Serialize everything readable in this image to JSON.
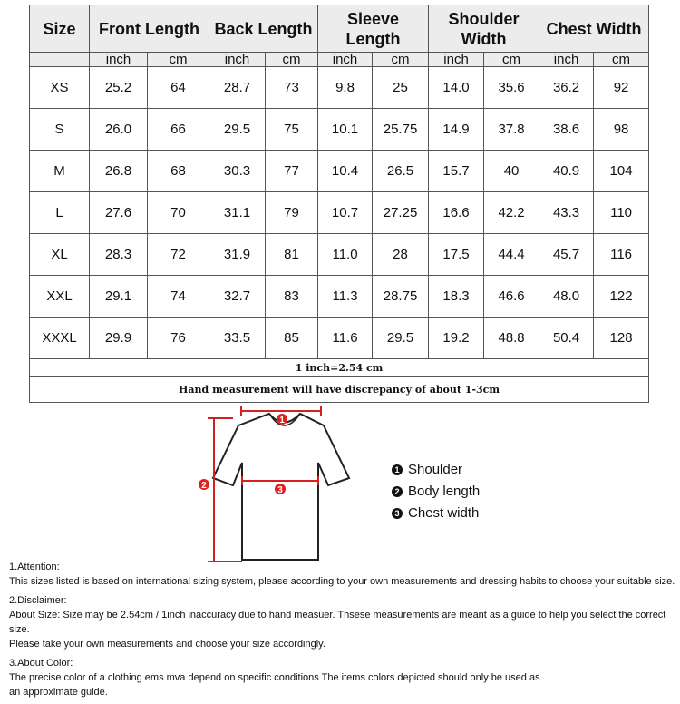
{
  "headers": [
    "Size",
    "Front Length",
    "Back Length",
    "Sleeve Length",
    "Shoulder Width",
    "Chest Width"
  ],
  "units": [
    "inch",
    "cm"
  ],
  "rows": [
    [
      "XS",
      "25.2",
      "64",
      "28.7",
      "73",
      "9.8",
      "25",
      "14.0",
      "35.6",
      "36.2",
      "92"
    ],
    [
      "S",
      "26.0",
      "66",
      "29.5",
      "75",
      "10.1",
      "25.75",
      "14.9",
      "37.8",
      "38.6",
      "98"
    ],
    [
      "M",
      "26.8",
      "68",
      "30.3",
      "77",
      "10.4",
      "26.5",
      "15.7",
      "40",
      "40.9",
      "104"
    ],
    [
      "L",
      "27.6",
      "70",
      "31.1",
      "79",
      "10.7",
      "27.25",
      "16.6",
      "42.2",
      "43.3",
      "110"
    ],
    [
      "XL",
      "28.3",
      "72",
      "31.9",
      "81",
      "11.0",
      "28",
      "17.5",
      "44.4",
      "45.7",
      "116"
    ],
    [
      "XXL",
      "29.1",
      "74",
      "32.7",
      "83",
      "11.3",
      "28.75",
      "18.3",
      "46.6",
      "48.0",
      "122"
    ],
    [
      "XXXL",
      "29.9",
      "76",
      "33.5",
      "85",
      "11.6",
      "29.5",
      "19.2",
      "48.8",
      "50.4",
      "128"
    ]
  ],
  "conversion_note": "1 inch=2.54 cm",
  "discrepancy_note": "Hand measurement will have discrepancy of about 1-3cm",
  "diagram": {
    "markers": [
      "1",
      "2",
      "3"
    ],
    "marker_color": "#e02020"
  },
  "legend": [
    {
      "num": "1",
      "label": "Shoulder"
    },
    {
      "num": "2",
      "label": "Body length"
    },
    {
      "num": "3",
      "label": "Chest width"
    }
  ],
  "notes": [
    {
      "title": "1.Attention:",
      "lines": [
        "This sizes listed is based on international sizing system, please according to your own measurements and dressing habits to choose your suitable size."
      ]
    },
    {
      "title": "2.Disclaimer:",
      "lines": [
        "About Size: Size may be 2.54cm / 1inch inaccuracy due to hand measuer. Thsese measurements are meant as a guide to help you select the correct size.",
        "Please take your own measurements and choose your size accordingly."
      ]
    },
    {
      "title": "3.About Color:",
      "lines": [
        "The precise color of a clothing ems mva depend on specific conditions The items colors depicted should only be used as",
        "an approximate guide."
      ]
    }
  ]
}
